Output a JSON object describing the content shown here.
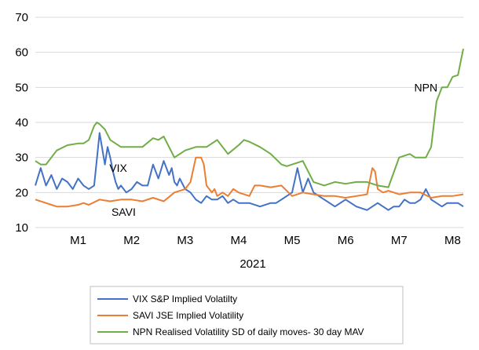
{
  "chart_data": {
    "type": "line",
    "title": "",
    "xlabel": "2021",
    "ylabel": "",
    "ylim": [
      10,
      70
    ],
    "yticks": [
      10,
      20,
      30,
      40,
      50,
      60,
      70
    ],
    "grid": "horizontal",
    "legend_position": "bottom",
    "x_tick_labels": [
      "M1",
      "M2",
      "M3",
      "M4",
      "M5",
      "M6",
      "M7",
      "M8"
    ],
    "xlim": [
      0.2,
      8.2
    ],
    "annotations": [
      {
        "text": "VIX",
        "x": 1.75,
        "y": 27
      },
      {
        "text": "SAVI",
        "x": 1.85,
        "y": 14.5
      },
      {
        "text": "NPN",
        "x": 7.5,
        "y": 50
      }
    ],
    "series": [
      {
        "name": "VIX S&P Implied Volatilty",
        "color": "#4472C4",
        "x": [
          0.2,
          0.3,
          0.4,
          0.5,
          0.6,
          0.7,
          0.8,
          0.9,
          1.0,
          1.1,
          1.2,
          1.3,
          1.4,
          1.5,
          1.55,
          1.6,
          1.65,
          1.7,
          1.75,
          1.8,
          1.9,
          2.0,
          2.1,
          2.2,
          2.3,
          2.4,
          2.5,
          2.6,
          2.7,
          2.75,
          2.8,
          2.85,
          2.9,
          3.0,
          3.1,
          3.2,
          3.3,
          3.4,
          3.5,
          3.6,
          3.7,
          3.8,
          3.9,
          4.0,
          4.2,
          4.4,
          4.6,
          4.7,
          4.8,
          4.9,
          5.0,
          5.1,
          5.2,
          5.25,
          5.3,
          5.35,
          5.4,
          5.5,
          5.6,
          5.7,
          5.8,
          6.0,
          6.2,
          6.4,
          6.6,
          6.8,
          6.9,
          7.0,
          7.1,
          7.2,
          7.3,
          7.4,
          7.5,
          7.6,
          7.7,
          7.8,
          7.9,
          8.0,
          8.1,
          8.2
        ],
        "values": [
          22,
          27,
          22,
          25,
          21,
          24,
          23,
          21,
          24,
          22,
          21,
          22,
          37,
          28,
          33,
          30,
          26,
          23,
          21,
          22,
          20,
          21,
          23,
          22,
          22,
          28,
          24,
          29,
          25,
          27,
          23,
          22,
          24,
          21,
          20,
          18,
          17,
          19,
          18,
          18,
          19,
          17,
          18,
          17,
          17,
          16,
          17,
          17,
          18,
          19,
          20,
          27,
          20,
          22,
          24,
          22,
          20,
          19,
          18,
          17,
          16,
          18,
          16,
          15,
          17,
          15,
          16,
          16,
          18,
          17,
          17,
          18,
          21,
          18,
          17,
          16,
          17,
          17,
          17,
          16
        ]
      },
      {
        "name": "SAVI JSE Implied Volatility",
        "color": "#ED7D31",
        "x": [
          0.2,
          0.4,
          0.5,
          0.6,
          0.8,
          1.0,
          1.1,
          1.2,
          1.4,
          1.6,
          1.8,
          2.0,
          2.2,
          2.4,
          2.6,
          2.8,
          3.0,
          3.1,
          3.2,
          3.3,
          3.35,
          3.4,
          3.5,
          3.55,
          3.6,
          3.7,
          3.8,
          3.9,
          4.0,
          4.2,
          4.3,
          4.4,
          4.6,
          4.8,
          5.0,
          5.2,
          5.4,
          5.6,
          5.8,
          6.0,
          6.2,
          6.4,
          6.5,
          6.55,
          6.6,
          6.7,
          6.8,
          7.0,
          7.2,
          7.4,
          7.6,
          7.8,
          8.0,
          8.2
        ],
        "values": [
          18,
          17,
          16.5,
          16,
          16,
          16.5,
          17,
          16.5,
          18,
          17.5,
          18,
          18,
          17.5,
          18.5,
          17.5,
          20,
          21,
          23,
          30,
          30,
          28,
          22,
          20,
          21,
          19,
          20,
          19,
          21,
          20,
          19,
          22,
          22,
          21.5,
          22,
          19,
          20,
          19.5,
          19,
          19,
          18.5,
          19,
          19.5,
          27,
          26,
          21,
          20,
          20.5,
          19.5,
          20,
          20,
          18.5,
          19,
          19,
          19.5
        ]
      },
      {
        "name": "NPN Realised Volatility SD of daily moves- 30 day MAV",
        "color": "#70AD47",
        "x": [
          0.2,
          0.3,
          0.4,
          0.5,
          0.6,
          0.8,
          1.0,
          1.1,
          1.2,
          1.3,
          1.35,
          1.4,
          1.5,
          1.6,
          1.8,
          2.0,
          2.2,
          2.4,
          2.5,
          2.6,
          2.8,
          3.0,
          3.2,
          3.4,
          3.6,
          3.8,
          4.0,
          4.1,
          4.2,
          4.4,
          4.5,
          4.6,
          4.8,
          4.9,
          5.0,
          5.2,
          5.4,
          5.6,
          5.8,
          6.0,
          6.2,
          6.4,
          6.5,
          6.6,
          6.8,
          7.0,
          7.2,
          7.3,
          7.4,
          7.5,
          7.6,
          7.7,
          7.8,
          7.9,
          8.0,
          8.1,
          8.2
        ],
        "values": [
          29,
          28,
          28,
          30,
          32,
          33.5,
          34,
          34,
          35,
          39,
          40,
          39.5,
          38,
          35,
          33,
          33,
          33,
          35.5,
          35,
          36,
          30,
          32,
          33,
          33,
          35,
          31,
          33.5,
          35,
          34.5,
          33,
          32,
          31,
          28,
          27.5,
          28,
          29,
          23,
          22,
          23,
          22.5,
          23,
          23,
          22.5,
          22,
          21.5,
          30,
          31,
          30,
          30,
          30,
          33,
          46,
          50,
          50,
          53,
          53.5,
          61
        ]
      }
    ]
  }
}
